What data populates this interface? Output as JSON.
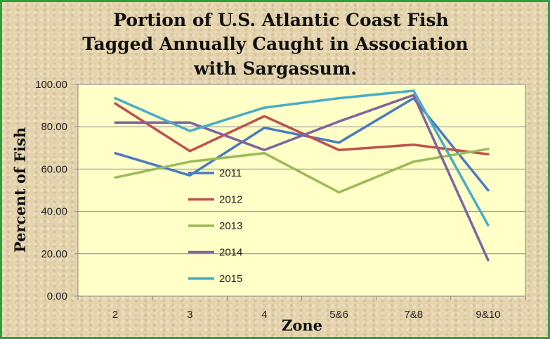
{
  "chart_data": {
    "type": "line",
    "title": [
      "Portion of U.S. Atlantic Coast Fish",
      "Tagged Annually Caught in Association",
      "with Sargassum."
    ],
    "xlabel": "Zone",
    "ylabel": "Percent of Fish",
    "categories": [
      "2",
      "3",
      "4",
      "5&6",
      "7&8",
      "9&10"
    ],
    "ylim": [
      0,
      100
    ],
    "yticks": [
      "0.00",
      "20.00",
      "40.00",
      "60.00",
      "80.00",
      "100.00"
    ],
    "ytick_values": [
      0,
      20,
      40,
      60,
      80,
      100
    ],
    "grid": "horizontal",
    "legend_position": "inside-left",
    "plot_background": "#ffffc8",
    "series": [
      {
        "name": "2011",
        "color": "#4a7bbf",
        "values": [
          67.5,
          57,
          79.5,
          72.5,
          93.5,
          50
        ]
      },
      {
        "name": "2012",
        "color": "#c0504d",
        "values": [
          91,
          68.5,
          85,
          69,
          71.5,
          67
        ]
      },
      {
        "name": "2013",
        "color": "#9bbb59",
        "values": [
          56,
          63.5,
          67.5,
          49,
          63.5,
          69.5
        ]
      },
      {
        "name": "2014",
        "color": "#8064a2",
        "values": [
          82,
          82,
          69,
          82.5,
          95,
          17
        ]
      },
      {
        "name": "2015",
        "color": "#4bacc6",
        "values": [
          93.5,
          78,
          89,
          93.5,
          97,
          33.5
        ]
      }
    ]
  }
}
